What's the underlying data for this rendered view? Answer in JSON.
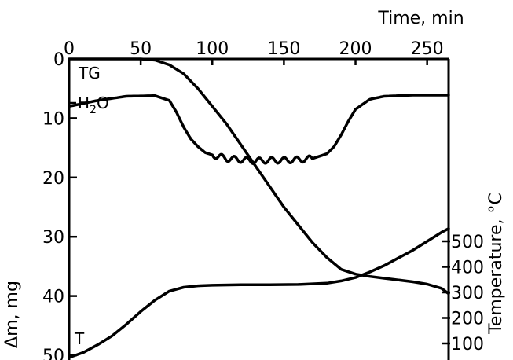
{
  "chart_data": {
    "type": "line",
    "top_axis": {
      "title": "Time, min",
      "range": [
        0,
        265
      ],
      "ticks": [
        0,
        50,
        100,
        150,
        200,
        250
      ]
    },
    "left_axis": {
      "title": "Δm, mg",
      "range": [
        0,
        54
      ],
      "inverted": true,
      "ticks": [
        0,
        10,
        20,
        30,
        40,
        50
      ]
    },
    "right_axis": {
      "title": "Temperature, °C",
      "range": [
        30,
        560
      ],
      "ticks": [
        100,
        200,
        300,
        400,
        500
      ]
    },
    "series": [
      {
        "name": "TG",
        "axis": "left",
        "x": [
          0,
          50,
          60,
          70,
          80,
          90,
          100,
          110,
          120,
          130,
          140,
          150,
          160,
          170,
          180,
          190,
          200,
          210,
          220,
          230,
          240,
          250,
          260,
          265
        ],
        "y": [
          0,
          0,
          0.2,
          1,
          2.5,
          5,
          8,
          11,
          14.5,
          18,
          21.5,
          25,
          28,
          31,
          33.5,
          35.5,
          36.3,
          36.7,
          37,
          37.3,
          37.6,
          38,
          38.7,
          39.6
        ]
      },
      {
        "name": "H2O",
        "axis": "left",
        "x": [
          0,
          20,
          40,
          60,
          70,
          75,
          80,
          85,
          90,
          95,
          100,
          110,
          120,
          130,
          140,
          150,
          160,
          170,
          180,
          185,
          190,
          195,
          200,
          210,
          220,
          240,
          265
        ],
        "y": [
          8,
          7,
          6.3,
          6.2,
          7,
          9,
          11.5,
          13.5,
          14.8,
          15.8,
          16.2,
          16.8,
          17,
          17.2,
          17.1,
          17.1,
          17,
          16.8,
          16,
          14.8,
          12.8,
          10.5,
          8.5,
          6.8,
          6.3,
          6.1,
          6.1
        ]
      },
      {
        "name": "T",
        "axis": "right",
        "x": [
          0,
          10,
          20,
          30,
          40,
          50,
          60,
          70,
          80,
          90,
          100,
          120,
          140,
          160,
          180,
          190,
          200,
          210,
          220,
          230,
          240,
          250,
          260,
          265
        ],
        "y": [
          45,
          65,
          95,
          130,
          175,
          225,
          270,
          305,
          320,
          326,
          328,
          330,
          330,
          331,
          336,
          345,
          358,
          380,
          405,
          435,
          465,
          500,
          535,
          550
        ]
      }
    ],
    "labels": {
      "tg": "TG",
      "h2o": "H",
      "h2o_sub": "2",
      "h2o_tail": "O",
      "t": "T"
    }
  }
}
